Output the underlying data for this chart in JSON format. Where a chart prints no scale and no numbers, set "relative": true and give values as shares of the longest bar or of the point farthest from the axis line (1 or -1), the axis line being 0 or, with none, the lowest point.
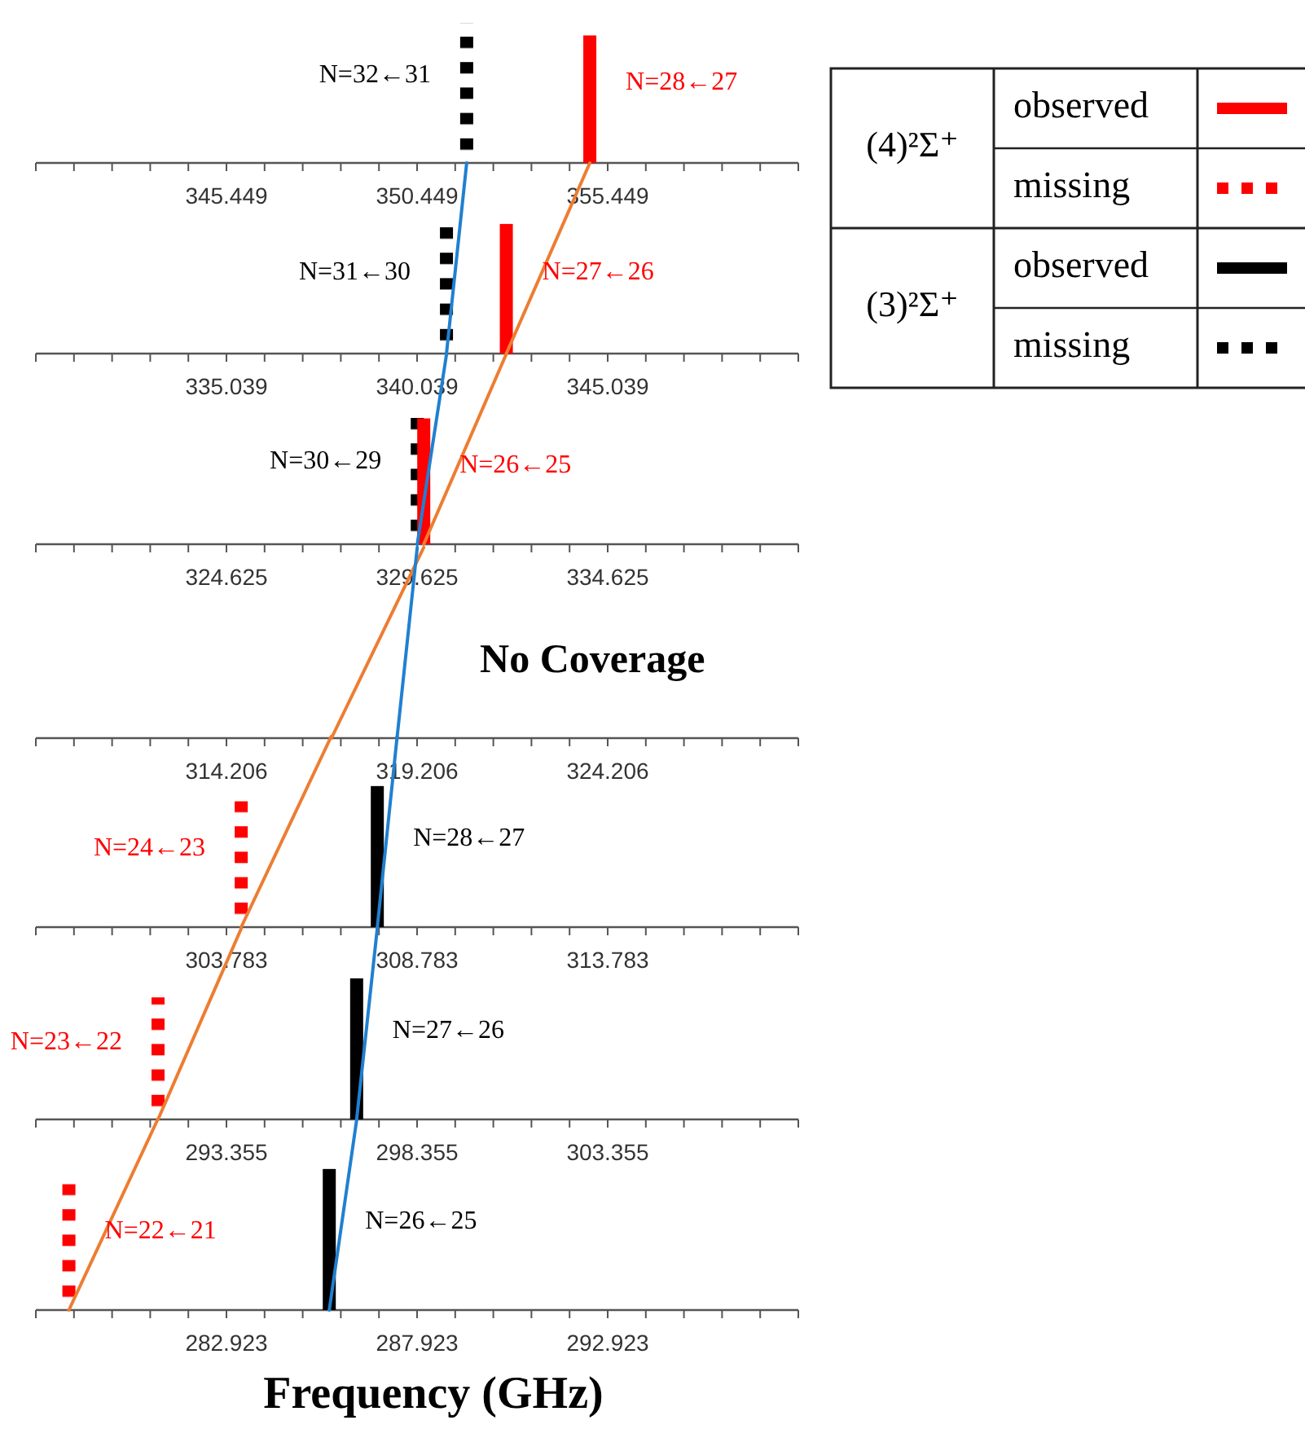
{
  "chart_data": [
    {
      "type": "bar",
      "relative": true,
      "xlim": [
        340.449,
        360.449
      ],
      "xticks": [
        {
          "value": 340.449,
          "label": null
        },
        {
          "value": 341.449,
          "label": null
        },
        {
          "value": 342.449,
          "label": null
        },
        {
          "value": 343.449,
          "label": null
        },
        {
          "value": 344.449,
          "label": null
        },
        345.449,
        {
          "value": 346.449,
          "label": null
        },
        {
          "value": 347.449,
          "label": null
        },
        {
          "value": 348.449,
          "label": null
        },
        {
          "value": 349.449,
          "label": null
        },
        350.449,
        {
          "value": 351.449,
          "label": null
        },
        {
          "value": 352.449,
          "label": null
        },
        {
          "value": 353.449,
          "label": null
        },
        {
          "value": 354.449,
          "label": null
        },
        355.449,
        {
          "value": 356.449,
          "label": null
        },
        {
          "value": 357.449,
          "label": null
        },
        {
          "value": 358.449,
          "label": null
        },
        {
          "value": 359.449,
          "label": null
        },
        {
          "value": 360.449,
          "label": null
        }
      ],
      "series": [
        {
          "type": "bar",
          "color": "#000000",
          "line_style": "dotted",
          "x": [
            351.75
          ],
          "values": [
            1
          ]
        },
        {
          "type": "bar",
          "color": "#ff0000",
          "line_style": "solid",
          "x": [
            354.98
          ],
          "values": [
            0.91
          ]
        }
      ],
      "annotations": [
        "N=32←31",
        "N=28←27"
      ]
    },
    {
      "type": "bar",
      "relative": true,
      "xlim": [
        330.039,
        350.039
      ],
      "xticks": [
        {
          "value": 330.039,
          "label": null
        },
        {
          "value": 331.039,
          "label": null
        },
        {
          "value": 332.039,
          "label": null
        },
        {
          "value": 333.039,
          "label": null
        },
        {
          "value": 334.039,
          "label": null
        },
        335.039,
        {
          "value": 336.039,
          "label": null
        },
        {
          "value": 337.039,
          "label": null
        },
        {
          "value": 338.039,
          "label": null
        },
        {
          "value": 339.039,
          "label": null
        },
        340.039,
        {
          "value": 341.039,
          "label": null
        },
        {
          "value": 342.039,
          "label": null
        },
        {
          "value": 343.039,
          "label": null
        },
        {
          "value": 344.039,
          "label": null
        },
        345.039,
        {
          "value": 346.039,
          "label": null
        },
        {
          "value": 347.039,
          "label": null
        },
        {
          "value": 348.039,
          "label": null
        },
        {
          "value": 349.039,
          "label": null
        },
        {
          "value": 350.039,
          "label": null
        }
      ],
      "series": [
        {
          "type": "bar",
          "color": "#000000",
          "line_style": "dotted",
          "x": [
            340.81
          ],
          "values": [
            0.68
          ]
        },
        {
          "type": "bar",
          "color": "#ff0000",
          "line_style": "solid",
          "x": [
            342.38
          ],
          "values": [
            0.68
          ]
        },
        {
          "type": "line",
          "color": "#ed7d31",
          "x": [
            342.38,
            344.57
          ],
          "values": [
            0,
            1
          ]
        },
        {
          "type": "line",
          "color": "#2080d0",
          "x": [
            340.81,
            341.34
          ],
          "values": [
            0,
            1
          ]
        }
      ],
      "annotations": [
        "N=31←30",
        "N=27←26"
      ]
    },
    {
      "type": "bar",
      "relative": true,
      "xlim": [
        319.625,
        339.625
      ],
      "xticks": [
        {
          "value": 319.625,
          "label": null
        },
        {
          "value": 320.625,
          "label": null
        },
        {
          "value": 321.625,
          "label": null
        },
        {
          "value": 322.625,
          "label": null
        },
        {
          "value": 323.625,
          "label": null
        },
        324.625,
        {
          "value": 325.625,
          "label": null
        },
        {
          "value": 326.625,
          "label": null
        },
        {
          "value": 327.625,
          "label": null
        },
        {
          "value": 328.625,
          "label": null
        },
        329.625,
        {
          "value": 330.625,
          "label": null
        },
        {
          "value": 331.625,
          "label": null
        },
        {
          "value": 332.625,
          "label": null
        },
        {
          "value": 333.625,
          "label": null
        },
        334.625,
        {
          "value": 335.625,
          "label": null
        },
        {
          "value": 336.625,
          "label": null
        },
        {
          "value": 337.625,
          "label": null
        },
        {
          "value": 338.625,
          "label": null
        },
        {
          "value": 339.625,
          "label": null
        }
      ],
      "series": [
        {
          "type": "bar",
          "color": "#000000",
          "line_style": "dotted",
          "x": [
            329.63
          ],
          "values": [
            0.69
          ]
        },
        {
          "type": "bar",
          "color": "#ff0000",
          "line_style": "solid",
          "x": [
            329.8
          ],
          "values": [
            0.66
          ]
        },
        {
          "type": "line",
          "color": "#ed7d31",
          "x": [
            329.8,
            331.97
          ],
          "values": [
            0,
            1
          ]
        },
        {
          "type": "line",
          "color": "#2080d0",
          "x": [
            329.63,
            330.4
          ],
          "values": [
            0,
            1
          ]
        }
      ],
      "annotations": [
        "N=30←29",
        "N=26←25"
      ]
    },
    {
      "type": "bar",
      "relative": true,
      "xlim": [
        309.206,
        329.206
      ],
      "xticks": [
        {
          "value": 309.206,
          "label": null
        },
        {
          "value": 310.206,
          "label": null
        },
        {
          "value": 311.206,
          "label": null
        },
        {
          "value": 312.206,
          "label": null
        },
        {
          "value": 313.206,
          "label": null
        },
        314.206,
        {
          "value": 315.206,
          "label": null
        },
        {
          "value": 316.206,
          "label": null
        },
        {
          "value": 317.206,
          "label": null
        },
        {
          "value": 318.206,
          "label": null
        },
        319.206,
        {
          "value": 320.206,
          "label": null
        },
        {
          "value": 321.206,
          "label": null
        },
        {
          "value": 322.206,
          "label": null
        },
        {
          "value": 323.206,
          "label": null
        },
        324.206,
        {
          "value": 325.206,
          "label": null
        },
        {
          "value": 326.206,
          "label": null
        },
        {
          "value": 327.206,
          "label": null
        },
        {
          "value": 328.206,
          "label": null
        },
        {
          "value": 329.206,
          "label": null
        }
      ],
      "series": [
        {
          "type": "line",
          "color": "#ed7d31",
          "x": [
            316.96,
            319.38
          ],
          "values": [
            0,
            1
          ]
        },
        {
          "type": "line",
          "color": "#2080d0",
          "x": [
            318.68,
            319.21
          ],
          "values": [
            0,
            1
          ]
        }
      ],
      "annotations": [
        "No Coverage"
      ]
    },
    {
      "type": "bar",
      "relative": true,
      "xlim": [
        298.783,
        318.783
      ],
      "xticks": [
        {
          "value": 298.783,
          "label": null
        },
        {
          "value": 299.783,
          "label": null
        },
        {
          "value": 300.783,
          "label": null
        },
        {
          "value": 301.783,
          "label": null
        },
        {
          "value": 302.783,
          "label": null
        },
        303.783,
        {
          "value": 304.783,
          "label": null
        },
        {
          "value": 305.783,
          "label": null
        },
        {
          "value": 306.783,
          "label": null
        },
        {
          "value": 307.783,
          "label": null
        },
        308.783,
        {
          "value": 309.783,
          "label": null
        },
        {
          "value": 310.783,
          "label": null
        },
        {
          "value": 311.783,
          "label": null
        },
        {
          "value": 312.783,
          "label": null
        },
        313.783,
        {
          "value": 314.783,
          "label": null
        },
        {
          "value": 315.783,
          "label": null
        },
        {
          "value": 316.783,
          "label": null
        },
        {
          "value": 317.783,
          "label": null
        },
        {
          "value": 318.783,
          "label": null
        }
      ],
      "series": [
        {
          "type": "bar",
          "color": "#ff0000",
          "line_style": "dotted",
          "x": [
            304.17
          ],
          "values": [
            0.66
          ]
        },
        {
          "type": "bar",
          "color": "#000000",
          "line_style": "solid",
          "x": [
            307.74
          ],
          "values": [
            0.74
          ]
        },
        {
          "type": "line",
          "color": "#ed7d31",
          "x": [
            304.17,
            306.53
          ],
          "values": [
            0,
            1
          ]
        },
        {
          "type": "line",
          "color": "#2080d0",
          "x": [
            307.74,
            308.26
          ],
          "values": [
            0,
            1
          ]
        }
      ],
      "annotations": [
        "N=24←23",
        "N=28←27"
      ]
    },
    {
      "type": "bar",
      "relative": true,
      "xlim": [
        288.355,
        308.355
      ],
      "xticks": [
        {
          "value": 288.355,
          "label": null
        },
        {
          "value": 289.355,
          "label": null
        },
        {
          "value": 290.355,
          "label": null
        },
        {
          "value": 291.355,
          "label": null
        },
        {
          "value": 292.355,
          "label": null
        },
        293.355,
        {
          "value": 294.355,
          "label": null
        },
        {
          "value": 295.355,
          "label": null
        },
        {
          "value": 296.355,
          "label": null
        },
        {
          "value": 297.355,
          "label": null
        },
        298.355,
        {
          "value": 299.355,
          "label": null
        },
        {
          "value": 300.355,
          "label": null
        },
        {
          "value": 301.355,
          "label": null
        },
        {
          "value": 302.355,
          "label": null
        },
        303.355,
        {
          "value": 304.355,
          "label": null
        },
        {
          "value": 305.355,
          "label": null
        },
        {
          "value": 306.355,
          "label": null
        },
        {
          "value": 307.355,
          "label": null
        },
        {
          "value": 308.355,
          "label": null
        }
      ],
      "series": [
        {
          "type": "bar",
          "color": "#ff0000",
          "line_style": "dotted",
          "x": [
            291.56
          ],
          "values": [
            0.64
          ]
        },
        {
          "type": "bar",
          "color": "#000000",
          "line_style": "solid",
          "x": [
            296.77
          ],
          "values": [
            0.74
          ]
        },
        {
          "type": "line",
          "color": "#ed7d31",
          "x": [
            291.56,
            293.74
          ],
          "values": [
            0,
            1
          ]
        },
        {
          "type": "line",
          "color": "#2080d0",
          "x": [
            296.77,
            297.31
          ],
          "values": [
            0,
            1
          ]
        }
      ],
      "annotations": [
        "N=23←22",
        "N=27←26"
      ]
    },
    {
      "type": "bar",
      "relative": true,
      "xlabel": "Frequency (GHz)",
      "xlim": [
        277.923,
        297.923
      ],
      "xticks": [
        {
          "value": 277.923,
          "label": null
        },
        {
          "value": 278.923,
          "label": null
        },
        {
          "value": 279.923,
          "label": null
        },
        {
          "value": 280.923,
          "label": null
        },
        {
          "value": 281.923,
          "label": null
        },
        282.923,
        {
          "value": 283.923,
          "label": null
        },
        {
          "value": 284.923,
          "label": null
        },
        {
          "value": 285.923,
          "label": null
        },
        {
          "value": 286.923,
          "label": null
        },
        287.923,
        {
          "value": 288.923,
          "label": null
        },
        {
          "value": 289.923,
          "label": null
        },
        {
          "value": 290.923,
          "label": null
        },
        {
          "value": 291.923,
          "label": null
        },
        292.923,
        {
          "value": 293.923,
          "label": null
        },
        {
          "value": 294.923,
          "label": null
        },
        {
          "value": 295.923,
          "label": null
        },
        {
          "value": 296.923,
          "label": null
        },
        {
          "value": 297.923,
          "label": null
        }
      ],
      "series": [
        {
          "type": "bar",
          "color": "#ff0000",
          "line_style": "dotted",
          "x": [
            278.79
          ],
          "values": [
            0.66
          ]
        },
        {
          "type": "bar",
          "color": "#000000",
          "line_style": "solid",
          "x": [
            285.62
          ],
          "values": [
            0.74
          ]
        },
        {
          "type": "line",
          "color": "#ed7d31",
          "x": [
            278.79,
            281.12
          ],
          "values": [
            0,
            1
          ]
        },
        {
          "type": "line",
          "color": "#2080d0",
          "x": [
            285.62,
            286.34
          ],
          "values": [
            0,
            1
          ]
        }
      ],
      "annotations": [
        "N=22←21",
        "N=26←25"
      ]
    },
    {
      "type": "other",
      "categories": [
        "(4)²Σ⁺",
        "(3)²Σ⁺"
      ],
      "colors": [
        "#ff0000",
        "#000000"
      ],
      "annotations": [
        "observed",
        "missing",
        "observed",
        "missing"
      ]
    }
  ]
}
